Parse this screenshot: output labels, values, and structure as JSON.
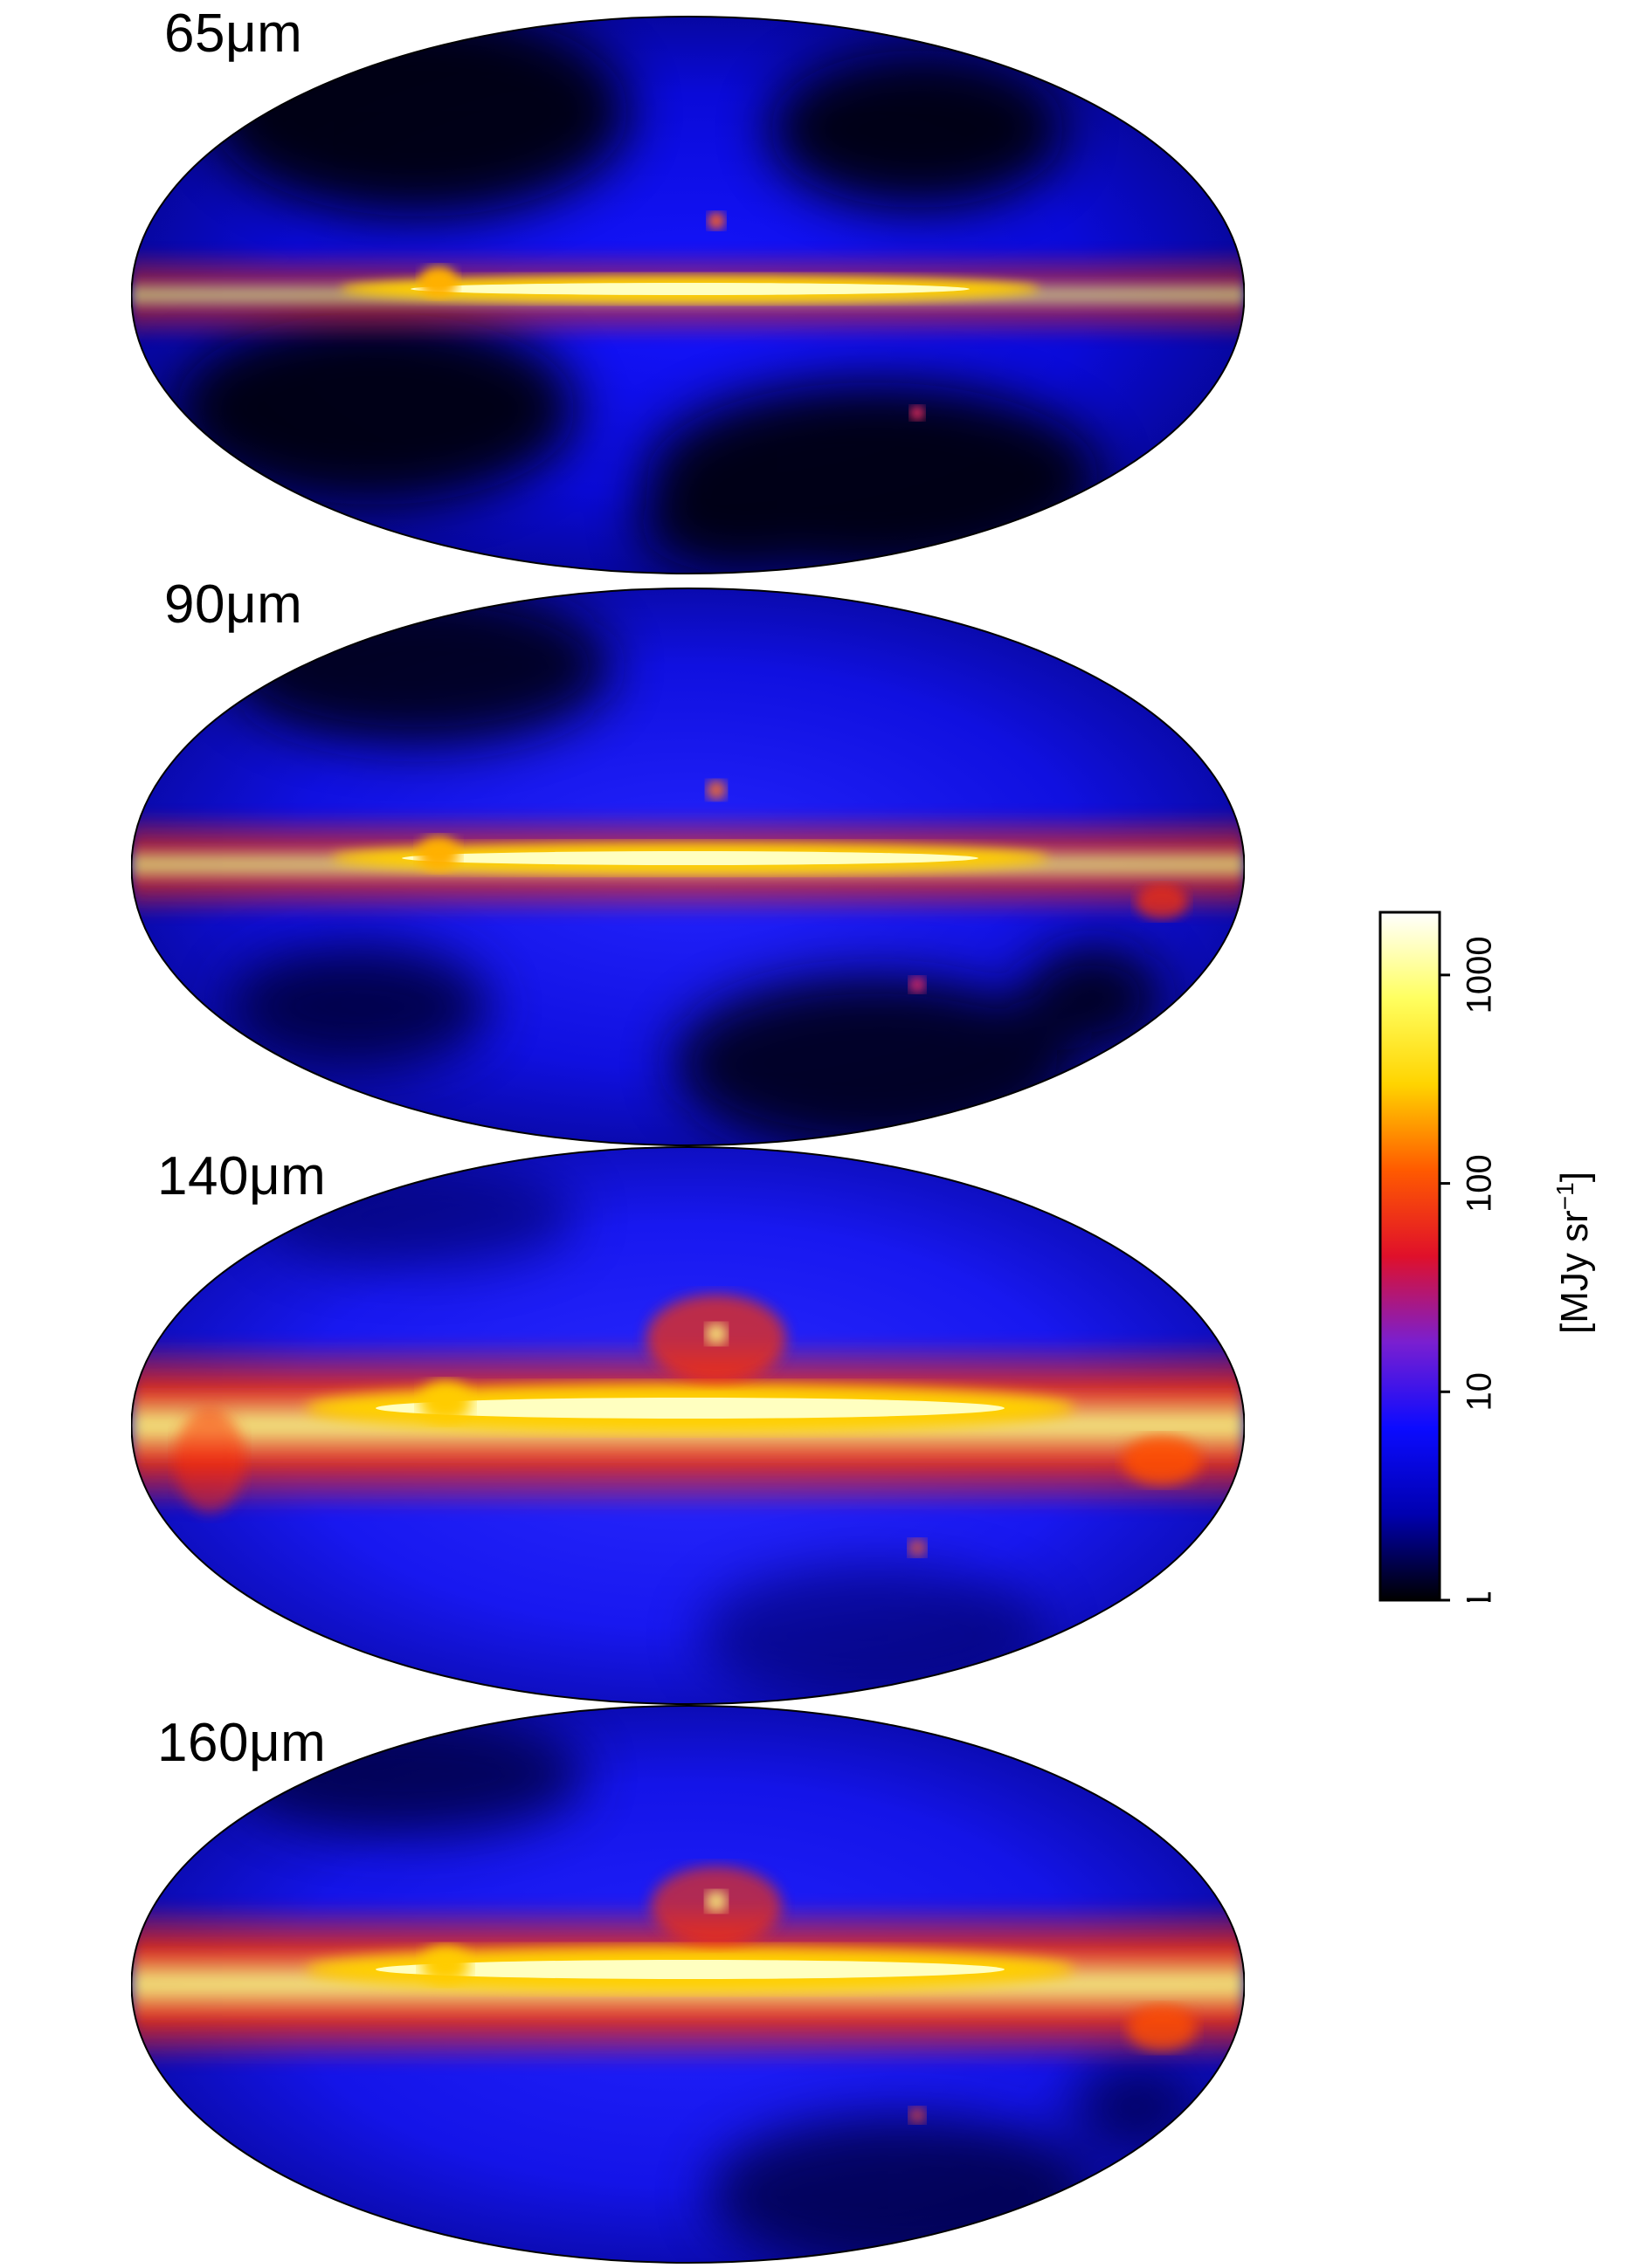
{
  "maps": [
    {
      "label": "65μm",
      "brightness": 0.55
    },
    {
      "label": "90μm",
      "brightness": 0.75
    },
    {
      "label": "140μm",
      "brightness": 1.0
    },
    {
      "label": "160μm",
      "brightness": 0.95
    }
  ],
  "colorbar": {
    "unit_main": "[MJy sr",
    "unit_sup": "−1",
    "unit_close": "]",
    "tick_labels": [
      "1",
      "10",
      "100",
      "1000"
    ],
    "scale": "log",
    "range": [
      1,
      2000
    ],
    "colors": [
      "#000000",
      "#0000b0",
      "#0b0bff",
      "#7a1fd0",
      "#e0102a",
      "#ff5a00",
      "#ffd400",
      "#ffff60",
      "#ffffff"
    ]
  }
}
